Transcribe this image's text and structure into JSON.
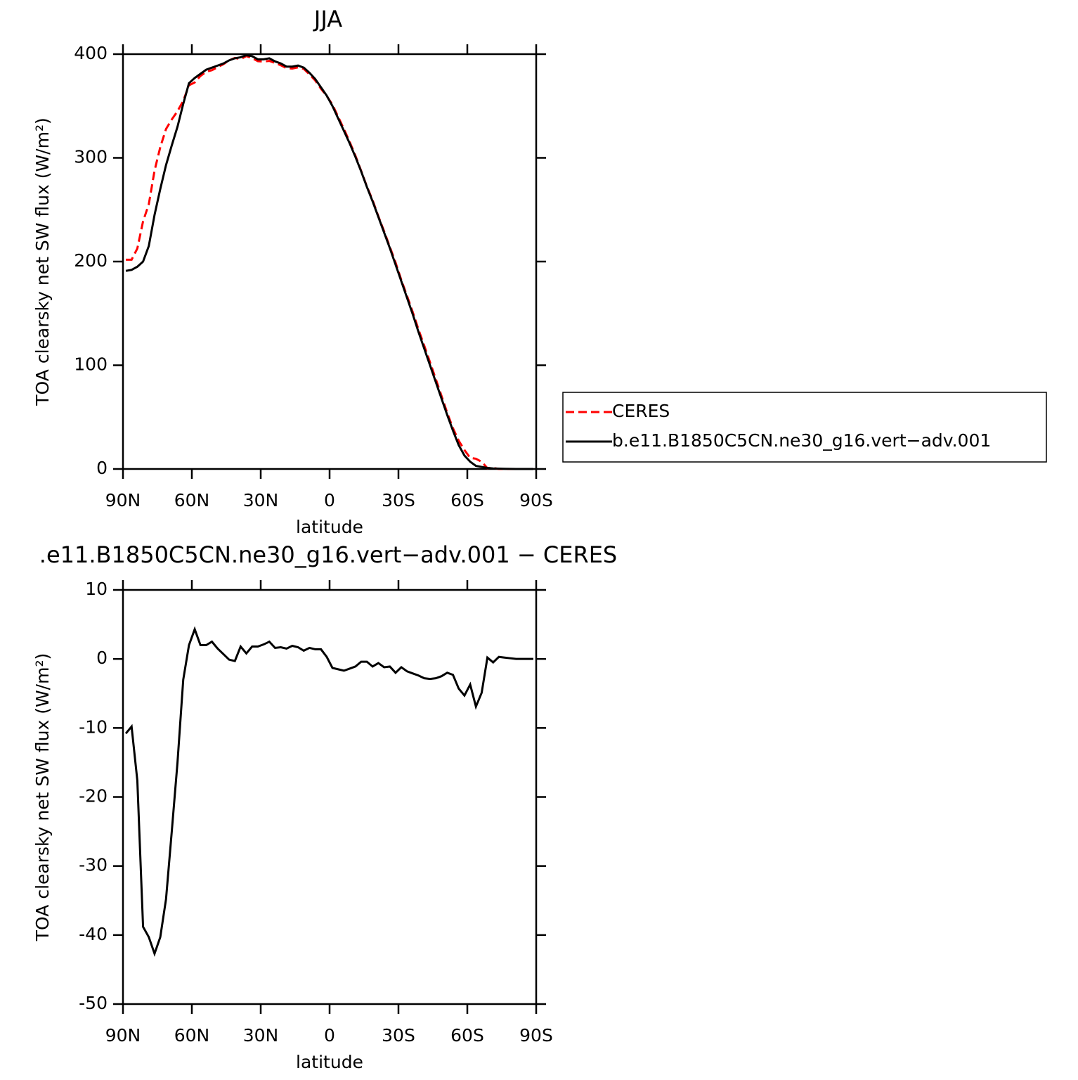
{
  "chart_data": [
    {
      "type": "line",
      "title": "JJA",
      "xlabel": "latitude",
      "ylabel": "TOA clearsky net SW flux (W/m²)",
      "x": [
        88.75,
        86.25,
        83.75,
        81.25,
        78.75,
        76.25,
        73.75,
        71.25,
        68.75,
        66.25,
        63.75,
        61.25,
        58.75,
        56.25,
        53.75,
        51.25,
        48.75,
        46.25,
        43.75,
        41.25,
        38.75,
        36.25,
        33.75,
        31.25,
        28.75,
        26.25,
        23.75,
        21.25,
        18.75,
        16.25,
        13.75,
        11.25,
        8.75,
        6.25,
        3.75,
        1.25,
        -1.25,
        -3.75,
        -6.25,
        -8.75,
        -11.25,
        -13.75,
        -16.25,
        -18.75,
        -21.25,
        -23.75,
        -26.25,
        -28.75,
        -31.25,
        -33.75,
        -36.25,
        -38.75,
        -41.25,
        -43.75,
        -46.25,
        -48.75,
        -51.25,
        -53.75,
        -56.25,
        -58.75,
        -61.25,
        -63.75,
        -66.25,
        -68.75,
        -71.25,
        -73.75,
        -76.25,
        -78.75,
        -81.25,
        -83.75,
        -86.25,
        -88.75
      ],
      "series": [
        {
          "name": "CERES",
          "color": "#ff0000",
          "line_style": "dashed",
          "values": [
            201.8,
            201.8,
            212.6,
            238.8,
            255.3,
            287.7,
            310.3,
            327.8,
            337,
            345,
            355,
            370,
            372.7,
            379,
            383,
            384.5,
            387.5,
            390.3,
            394.1,
            396.3,
            395.2,
            398.2,
            396.2,
            393.2,
            392.9,
            393.5,
            391.4,
            389.3,
            386.5,
            386.1,
            387.3,
            385.8,
            380.4,
            374.6,
            366.6,
            359.7,
            351.3,
            339.5,
            327.7,
            315.4,
            302.1,
            287.4,
            272.4,
            259.1,
            243.6,
            229.2,
            214.1,
            199,
            182.2,
            166.8,
            151.1,
            134.4,
            118.8,
            102.9,
            86.8,
            70.5,
            54,
            39.3,
            27.3,
            18.3,
            10.7,
            9.9,
            6.9,
            0.8,
            1,
            0,
            0,
            0,
            0,
            0,
            0,
            0
          ]
        },
        {
          "name": "b.e11.B1850C5CN.ne30_g16.vert−adv.001",
          "color": "#000000",
          "line_style": "solid",
          "values": [
            191,
            192,
            195,
            200,
            215,
            245,
            270,
            293,
            312,
            330,
            352,
            372,
            377,
            381,
            385,
            387,
            389,
            391,
            394,
            396,
            397,
            399,
            398,
            395,
            395,
            396,
            393,
            391,
            388,
            388,
            389,
            387,
            382,
            376,
            368,
            360,
            350,
            338,
            326,
            314,
            301,
            287,
            272,
            258,
            243,
            228,
            213,
            197,
            181,
            165,
            149,
            132,
            116,
            100,
            84,
            68,
            52,
            37,
            23,
            13,
            7,
            3,
            2,
            1,
            0.5,
            0.3,
            0.2,
            0.1,
            0,
            0,
            0,
            0
          ]
        }
      ],
      "xlim": [
        90,
        -90
      ],
      "xticks": [
        {
          "value": 90,
          "label": "90N"
        },
        {
          "value": 60,
          "label": "60N"
        },
        {
          "value": 30,
          "label": "30N"
        },
        0,
        {
          "value": -30,
          "label": "30S"
        },
        {
          "value": -60,
          "label": "60S"
        },
        {
          "value": -90,
          "label": "90S"
        }
      ],
      "ylim": [
        0,
        400
      ],
      "yticks": [
        0,
        100,
        200,
        300,
        400
      ],
      "legend": "right"
    },
    {
      "type": "line",
      "title": ".e11.B1850C5CN.ne30_g16.vert−adv.001 − CERES",
      "xlabel": "latitude",
      "ylabel": "TOA clearsky net SW flux (W/m²)",
      "x": [
        88.75,
        86.25,
        83.75,
        81.25,
        78.75,
        76.25,
        73.75,
        71.25,
        68.75,
        66.25,
        63.75,
        61.25,
        58.75,
        56.25,
        53.75,
        51.25,
        48.75,
        46.25,
        43.75,
        41.25,
        38.75,
        36.25,
        33.75,
        31.25,
        28.75,
        26.25,
        23.75,
        21.25,
        18.75,
        16.25,
        13.75,
        11.25,
        8.75,
        6.25,
        3.75,
        1.25,
        -1.25,
        -3.75,
        -6.25,
        -8.75,
        -11.25,
        -13.75,
        -16.25,
        -18.75,
        -21.25,
        -23.75,
        -26.25,
        -28.75,
        -31.25,
        -33.75,
        -36.25,
        -38.75,
        -41.25,
        -43.75,
        -46.25,
        -48.75,
        -51.25,
        -53.75,
        -56.25,
        -58.75,
        -61.25,
        -63.75,
        -66.25,
        -68.75,
        -71.25,
        -73.75,
        -76.25,
        -78.75,
        -81.25,
        -83.75,
        -86.25,
        -88.75
      ],
      "values": [
        -10.8,
        -9.8,
        -17.6,
        -38.8,
        -40.3,
        -42.7,
        -40.3,
        -34.8,
        -25,
        -15,
        -3,
        2,
        4.3,
        2,
        2,
        2.5,
        1.5,
        0.7,
        -0.1,
        -0.3,
        1.8,
        0.8,
        1.8,
        1.8,
        2.1,
        2.5,
        1.6,
        1.7,
        1.5,
        1.9,
        1.7,
        1.2,
        1.6,
        1.4,
        1.4,
        0.3,
        -1.3,
        -1.5,
        -1.7,
        -1.4,
        -1.1,
        -0.4,
        -0.4,
        -1.1,
        -0.6,
        -1.2,
        -1.1,
        -2,
        -1.2,
        -1.8,
        -2.1,
        -2.4,
        -2.8,
        -2.9,
        -2.8,
        -2.5,
        -2,
        -2.3,
        -4.3,
        -5.3,
        -3.7,
        -6.9,
        -4.9,
        0.2,
        -0.5,
        0.3,
        0.2,
        0.1,
        0,
        0,
        0,
        0
      ],
      "color": "#000000",
      "xlim": [
        90,
        -90
      ],
      "xticks": [
        {
          "value": 90,
          "label": "90N"
        },
        {
          "value": 60,
          "label": "60N"
        },
        {
          "value": 30,
          "label": "30N"
        },
        0,
        {
          "value": -30,
          "label": "30S"
        },
        {
          "value": -60,
          "label": "60S"
        },
        {
          "value": -90,
          "label": "90S"
        }
      ],
      "ylim": [
        -50,
        10
      ],
      "yticks": [
        -50,
        -40,
        -30,
        -20,
        -10,
        0,
        10
      ]
    }
  ]
}
